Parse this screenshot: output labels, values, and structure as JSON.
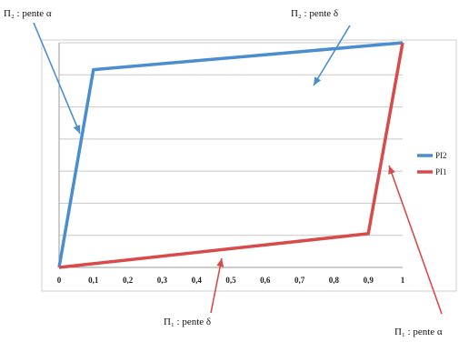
{
  "chart_data": {
    "type": "line",
    "xlim": [
      0,
      1
    ],
    "ylim": [
      0,
      1
    ],
    "x_ticks": [
      "0",
      "0,1",
      "0,2",
      "0,3",
      "0,4",
      "0,5",
      "0,6",
      "0,7",
      "0,8",
      "0,9",
      "1"
    ],
    "grid": true,
    "legend_position": "right",
    "series": [
      {
        "name": "PI2",
        "color": "#4a8ed0",
        "x": [
          0,
          0.1,
          1
        ],
        "y": [
          0,
          0.88,
          1
        ]
      },
      {
        "name": "PI1",
        "color": "#d94a4a",
        "x": [
          0,
          0.9,
          1
        ],
        "y": [
          0,
          0.15,
          1
        ]
      }
    ],
    "annotations": [
      {
        "id": "pi2-alpha",
        "text": "Π₂ : pente α",
        "color": "#4a8ed0"
      },
      {
        "id": "pi2-delta",
        "text": "Π₂ : pente δ",
        "color": "#4a8ed0"
      },
      {
        "id": "pi1-delta",
        "text": "Π₁ : pente δ",
        "color": "#d94a4a"
      },
      {
        "id": "pi1-alpha",
        "text": "Π₁ : pente α",
        "color": "#d94a4a"
      }
    ]
  }
}
